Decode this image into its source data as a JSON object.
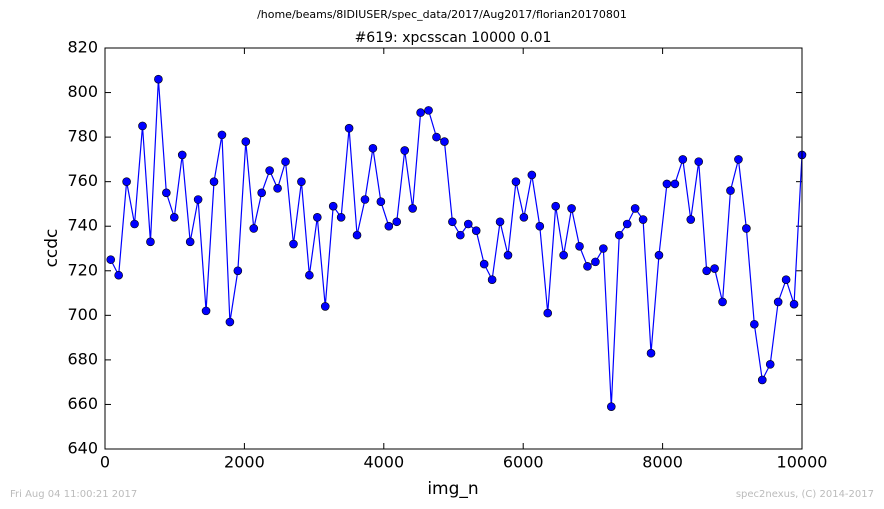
{
  "chart_data": {
    "type": "line",
    "suptitle": "/home/beams/8IDIUSER/spec_data/2017/Aug2017/florian20170801",
    "title": "#619: xpcsscan 10000 0.01",
    "xlabel": "img_n",
    "ylabel": "ccdc",
    "footer_left": "Fri Aug 04 11:00:21 2017",
    "footer_right": "spec2nexus, (C) 2014-2017",
    "x": [
      82,
      196,
      310,
      424,
      538,
      652,
      766,
      880,
      994,
      1108,
      1222,
      1336,
      1450,
      1564,
      1678,
      1792,
      1906,
      2020,
      2134,
      2248,
      2362,
      2476,
      2590,
      2704,
      2818,
      2932,
      3046,
      3160,
      3274,
      3388,
      3502,
      3616,
      3730,
      3844,
      3958,
      4072,
      4186,
      4300,
      4414,
      4528,
      4642,
      4756,
      4870,
      4984,
      5098,
      5212,
      5326,
      5440,
      5554,
      5668,
      5782,
      5896,
      6010,
      6124,
      6238,
      6352,
      6466,
      6580,
      6694,
      6808,
      6922,
      7036,
      7150,
      7264,
      7378,
      7492,
      7606,
      7720,
      7834,
      7948,
      8062,
      8176,
      8290,
      8404,
      8518,
      8632,
      8746,
      8860,
      8974,
      9088,
      9202,
      9316,
      9430,
      9544,
      9658,
      9772,
      9886,
      10000
    ],
    "series": [
      {
        "color": "#0000ff",
        "values": [
          725,
          718,
          760,
          741,
          785,
          733,
          806,
          755,
          744,
          772,
          733,
          752,
          702,
          760,
          781,
          697,
          720,
          778,
          739,
          755,
          765,
          757,
          769,
          732,
          760,
          718,
          744,
          704,
          749,
          744,
          784,
          736,
          752,
          775,
          751,
          740,
          742,
          774,
          748,
          791,
          792,
          780,
          778,
          742,
          736,
          741,
          738,
          723,
          716,
          742,
          727,
          760,
          744,
          763,
          740,
          701,
          749,
          727,
          748,
          731,
          722,
          724,
          730,
          659,
          736,
          741,
          748,
          743,
          683,
          727,
          759,
          759,
          770,
          743,
          769,
          720,
          721,
          706,
          756,
          770,
          739,
          696,
          671,
          678,
          706,
          716,
          705,
          772
        ]
      }
    ],
    "xlim": [
      0,
      10000
    ],
    "xticks": [
      0,
      2000,
      4000,
      6000,
      8000,
      10000
    ],
    "ylim": [
      640,
      820
    ],
    "yticks": [
      640,
      660,
      680,
      700,
      720,
      740,
      760,
      780,
      800,
      820
    ]
  }
}
